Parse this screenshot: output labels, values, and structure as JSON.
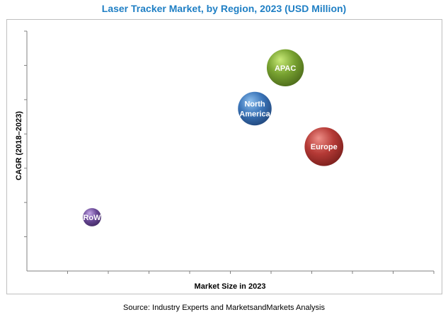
{
  "chart_data": {
    "type": "bubble",
    "title": "Laser Tracker Market, by Region, 2023 (USD Million)",
    "xlabel": "Market Size in 2023",
    "ylabel": "CAGR (2018–2023)",
    "source": "Source: Industry Experts and MarketsandMarkets Analysis",
    "xlim": [
      0,
      10
    ],
    "ylim": [
      0,
      7
    ],
    "grid": false,
    "legend": "none",
    "axis_values_shown": false,
    "series": [
      {
        "name": "APAC",
        "label": "APAC",
        "x": 6.35,
        "y": 5.93,
        "size": 0.65,
        "color": "#77a130",
        "highlight": "#c9ea78",
        "shadow": "#4f6e1c"
      },
      {
        "name": "North America",
        "label_lines": [
          "North",
          "America"
        ],
        "x": 5.6,
        "y": 4.74,
        "size": 0.59,
        "color": "#3a74b8",
        "highlight": "#8fc0ee",
        "shadow": "#234a80"
      },
      {
        "name": "Europe",
        "label": "Europe",
        "x": 7.3,
        "y": 3.63,
        "size": 0.68,
        "color": "#b53a36",
        "highlight": "#ee8f88",
        "shadow": "#7e211e"
      },
      {
        "name": "RoW",
        "label": "RoW",
        "x": 1.6,
        "y": 1.57,
        "size": 0.32,
        "color": "#6b4a98",
        "highlight": "#c3a7e6",
        "shadow": "#452c68"
      }
    ]
  }
}
